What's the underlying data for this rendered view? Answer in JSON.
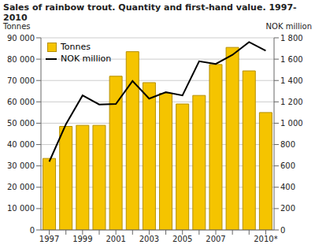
{
  "chart_data": {
    "type": "bar",
    "title": "Sales of rainbow trout. Quantity and first-hand value. 1997-2010",
    "categories": [
      "1997",
      null,
      "1999",
      null,
      "2001",
      null,
      "2003",
      null,
      "2005",
      null,
      "2007",
      null,
      null,
      "2010*"
    ],
    "series": [
      {
        "name": "Tonnes",
        "type": "bar",
        "color": "#f5c400",
        "values": [
          33500,
          48500,
          49000,
          49000,
          72000,
          83500,
          69000,
          64000,
          59000,
          63000,
          77500,
          85500,
          74500,
          55000
        ]
      },
      {
        "name": "NOK million",
        "type": "line",
        "color": "#000000",
        "axis": "y2",
        "values": [
          640,
          990,
          1260,
          1175,
          1180,
          1395,
          1230,
          1290,
          1260,
          1580,
          1555,
          1640,
          1760,
          1680
        ]
      }
    ],
    "ylabel": "Tonnes",
    "y2label": "NOK million",
    "ylim": [
      0,
      90000
    ],
    "yticks": [
      0,
      {
        "value": 10000,
        "label": "10 000"
      },
      {
        "value": 20000,
        "label": "20 000"
      },
      {
        "value": 30000,
        "label": "30 000"
      },
      {
        "value": 40000,
        "label": "40 000"
      },
      {
        "value": 50000,
        "label": "50 000"
      },
      {
        "value": 60000,
        "label": "60 000"
      },
      {
        "value": 70000,
        "label": "70 000"
      },
      {
        "value": 80000,
        "label": "80 000"
      },
      {
        "value": 90000,
        "label": "90 000"
      }
    ],
    "y2lim": [
      0,
      1800
    ],
    "y2ticks": [
      0,
      200,
      400,
      600,
      800,
      {
        "value": 1000,
        "label": "1 000"
      },
      {
        "value": 1200,
        "label": "1 200"
      },
      {
        "value": 1400,
        "label": "1 400"
      },
      {
        "value": 1600,
        "label": "1 600"
      },
      {
        "value": 1800,
        "label": "1 800"
      }
    ],
    "grid": true,
    "legend": "top-left"
  }
}
